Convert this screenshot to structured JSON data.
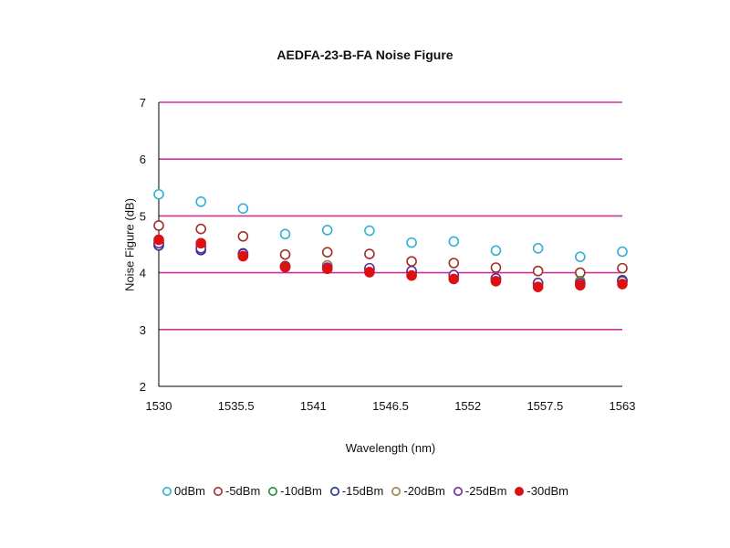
{
  "chart_data": {
    "type": "scatter",
    "title": "AEDFA-23-B-FA Noise Figure",
    "xlabel": "Wavelength (nm)",
    "ylabel": "Noise Figure (dB)",
    "xlim": [
      1530,
      1563
    ],
    "ylim": [
      2,
      7
    ],
    "x_ticks": [
      "1530",
      "1535.5",
      "1541",
      "1546.5",
      "1552",
      "1557.5",
      "1563"
    ],
    "y_ticks": [
      "2",
      "3",
      "4",
      "5",
      "6",
      "7"
    ],
    "grid": "horizontal",
    "grid_color": "#cc3399",
    "legend_position": "bottom",
    "x": [
      1530,
      1533,
      1536,
      1539,
      1542,
      1545,
      1548,
      1551,
      1554,
      1557,
      1560,
      1563
    ],
    "series": [
      {
        "name": "0dBm",
        "color": "#33b0d6",
        "filled": false,
        "values": [
          5.38,
          5.25,
          5.13,
          4.68,
          4.75,
          4.74,
          4.53,
          4.55,
          4.39,
          4.43,
          4.28,
          4.37
        ]
      },
      {
        "name": "-5dBm",
        "color": "#a0302a",
        "filled": false,
        "values": [
          4.83,
          4.77,
          4.64,
          4.32,
          4.36,
          4.33,
          4.2,
          4.17,
          4.09,
          4.03,
          4.0,
          4.08
        ]
      },
      {
        "name": "-10dBm",
        "color": "#2a8a3a",
        "filled": false,
        "values": [
          4.5,
          4.45,
          4.32,
          4.12,
          4.12,
          4.06,
          4.0,
          3.93,
          3.89,
          3.82,
          3.85,
          3.87
        ]
      },
      {
        "name": "-15dBm",
        "color": "#25308f",
        "filled": false,
        "values": [
          4.48,
          4.4,
          4.34,
          4.1,
          4.1,
          4.07,
          4.02,
          3.95,
          3.9,
          3.81,
          3.82,
          3.86
        ]
      },
      {
        "name": "-20dBm",
        "color": "#a08050",
        "filled": false,
        "values": [
          4.55,
          4.48,
          4.3,
          4.12,
          4.13,
          4.05,
          3.98,
          3.93,
          3.87,
          3.8,
          3.83,
          3.84
        ]
      },
      {
        "name": "-25dBm",
        "color": "#6a2a9a",
        "filled": false,
        "values": [
          4.52,
          4.43,
          4.33,
          4.11,
          4.09,
          4.08,
          4.03,
          3.96,
          3.9,
          3.82,
          3.81,
          3.85
        ]
      },
      {
        "name": "-30dBm",
        "color": "#dd1111",
        "filled": true,
        "values": [
          4.58,
          4.52,
          4.29,
          4.1,
          4.07,
          4.01,
          3.95,
          3.89,
          3.85,
          3.75,
          3.78,
          3.8
        ]
      }
    ]
  }
}
